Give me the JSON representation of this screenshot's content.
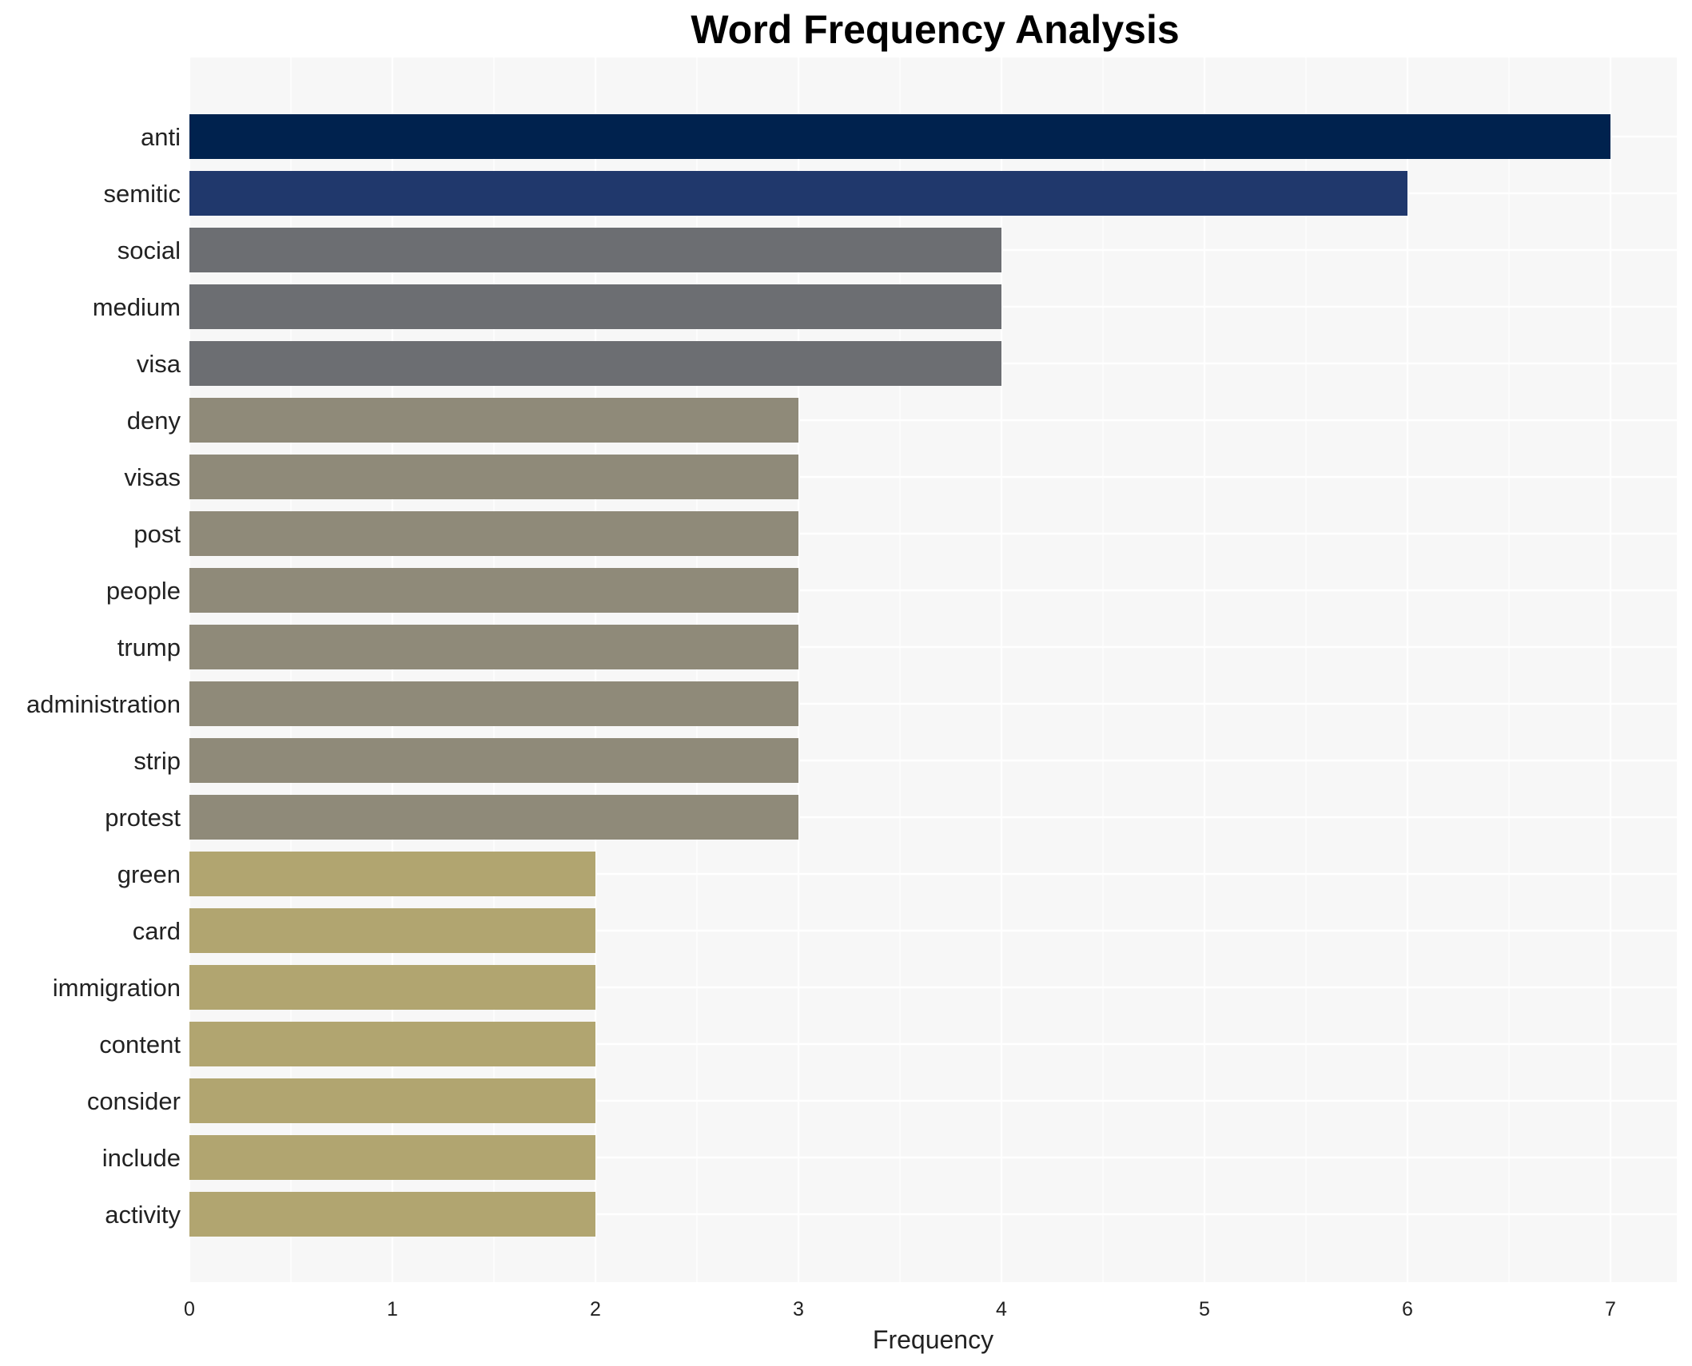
{
  "chart_data": {
    "type": "bar",
    "orientation": "horizontal",
    "title": "Word Frequency Analysis",
    "xlabel": "Frequency",
    "ylabel": "",
    "xlim": [
      0,
      7.35
    ],
    "xticks": [
      0,
      1,
      2,
      3,
      4,
      5,
      6,
      7
    ],
    "grid": true,
    "categories": [
      "anti",
      "semitic",
      "social",
      "medium",
      "visa",
      "deny",
      "visas",
      "post",
      "people",
      "trump",
      "administration",
      "strip",
      "protest",
      "green",
      "card",
      "immigration",
      "content",
      "consider",
      "include",
      "activity"
    ],
    "values": [
      7,
      6,
      4,
      4,
      4,
      3,
      3,
      3,
      3,
      3,
      3,
      3,
      3,
      2,
      2,
      2,
      2,
      2,
      2,
      2
    ],
    "colors": {
      "7": "#00224e",
      "6": "#20386c",
      "4": "#6c6e72",
      "3": "#8f8a79",
      "2": "#b1a570"
    },
    "plot_background": "#f7f7f7",
    "grid_color": "#ffffff"
  }
}
